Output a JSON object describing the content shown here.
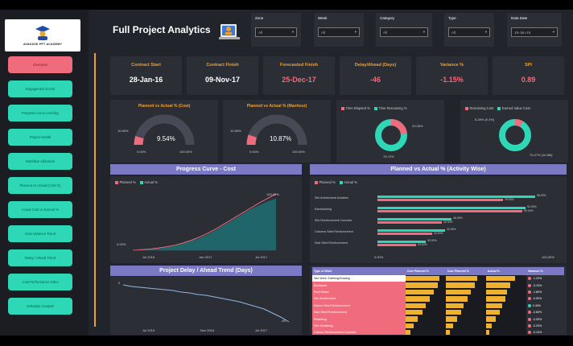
{
  "title": "Full Project Analytics",
  "logo_text": "AVAKASH PPT ACADEMY",
  "nav": [
    {
      "label": "Overview",
      "active": true
    },
    {
      "label": "Engagement (Cost)",
      "active": false
    },
    {
      "label": "Progress Curve (Activity)",
      "active": false
    },
    {
      "label": "Project Health",
      "active": false
    },
    {
      "label": "Workflow Allocation",
      "active": false
    },
    {
      "label": "Planned vs Actual (Cost %)",
      "active": false
    },
    {
      "label": "Actual Cost vs Earned %",
      "active": false
    },
    {
      "label": "Cost Variance Trend",
      "active": false
    },
    {
      "label": "Delay / Ahead Trend",
      "active": false
    },
    {
      "label": "Cost Performance Index",
      "active": false
    },
    {
      "label": "Schedule Analysis",
      "active": false
    }
  ],
  "filters": [
    {
      "label": "Zone",
      "value": "All"
    },
    {
      "label": "Week",
      "value": "All"
    },
    {
      "label": "Category",
      "value": "All"
    },
    {
      "label": "Type",
      "value": "All"
    },
    {
      "label": "Data Date",
      "value": "18-Jan-16"
    }
  ],
  "kpis": [
    {
      "label": "Contract Start",
      "value": "28-Jan-16",
      "color": "#ffffff"
    },
    {
      "label": "Contract Finish",
      "value": "09-Nov-17",
      "color": "#ffffff"
    },
    {
      "label": "Forecasted Finish",
      "value": "25-Dec-17",
      "color": "#f06b7b"
    },
    {
      "label": "Delay/Ahead (Days)",
      "value": "-46",
      "color": "#f06b7b"
    },
    {
      "label": "Variance %",
      "value": "-1.15%",
      "color": "#f06b7b"
    },
    {
      "label": "SPI",
      "value": "0.89",
      "color": "#f06b7b"
    }
  ],
  "gauges": [
    {
      "title": "Planned vs Actual % (Cost)",
      "small": "10.66%",
      "value": "9.54%",
      "min": "0.00%",
      "max": "100.00%",
      "fraction": 0.095
    },
    {
      "title": "Planned vs Actual % (Manhour)",
      "small": "12.68%",
      "value": "10.87%",
      "min": "0.00%",
      "max": "100.00%",
      "fraction": 0.11
    }
  ],
  "donuts": [
    {
      "legend": [
        "Time Elapsed %",
        "Time Remaining %"
      ],
      "label_right": "23.28%",
      "label_bottom": "76.72%",
      "fraction": 0.2328
    },
    {
      "legend": [
        "Remaining Cost",
        "Earned Value Cost"
      ],
      "label_left": "8.28% (0.4%)",
      "label_right": "75.47% (10.8M)",
      "fraction": 0.0828
    }
  ],
  "progress_curve": {
    "title": "Progress Curve - Cost",
    "legend": [
      "Planned %",
      "Actual %"
    ],
    "start_label": "0.00%",
    "end_label": "100.00%",
    "x_labels": [
      "Jul 2016",
      "Jan 2017",
      "Jul 2017"
    ],
    "planned": [
      0,
      1,
      2,
      4,
      6,
      9,
      13,
      18,
      24,
      31,
      39,
      48,
      57,
      66,
      75,
      84,
      92,
      100
    ],
    "actual": [
      0,
      1,
      2,
      3,
      5,
      8,
      12,
      17,
      22,
      29,
      37,
      46,
      55,
      64,
      73,
      80,
      87,
      92
    ]
  },
  "planned_actual_activity": {
    "title": "Planned vs Actual % (Activity Wise)",
    "legend": [
      "Planned %",
      "Actual %"
    ],
    "rows": [
      {
        "name": "Site Architectural Activities",
        "planned": 98,
        "actual": 78,
        "planned_label": "98.00%",
        "actual_label": "78.00%"
      },
      {
        "name": "Earthworking",
        "planned": 92,
        "actual": 90,
        "planned_label": "92.00%",
        "actual_label": "90.00%"
      },
      {
        "name": "Site Reinforcement Concrete",
        "planned": 46,
        "actual": 40,
        "planned_label": "46.00%",
        "actual_label": "40.00%"
      },
      {
        "name": "Columns Steel Reinforcement",
        "planned": 42,
        "actual": 34,
        "planned_label": "42.00%",
        "actual_label": "34.00%"
      },
      {
        "name": "Slab Steel Reinforcement",
        "planned": 30,
        "actual": 24,
        "planned_label": "30.00%",
        "actual_label": "24.00%"
      }
    ],
    "axis_min": "0.00%",
    "axis_max": "100.00%"
  },
  "delay_trend": {
    "title": "Project Delay / Ahead Trend (Days)",
    "x_labels": [
      "Jul 2016",
      "Nov 2016",
      "Jul 2017"
    ],
    "start_label": "0",
    "end_label": "-46",
    "values": [
      0,
      -2,
      -3,
      -4,
      -5,
      -6,
      -7,
      -9,
      -10,
      -12,
      -13,
      -15,
      -17,
      -19,
      -21,
      -24,
      -27,
      -30,
      -35,
      -40,
      -46
    ]
  },
  "activity_table": {
    "headers": [
      "Type of Work",
      "Cum Planned %",
      "Cum Planned %",
      "Actual %",
      "Variance %"
    ],
    "rows": [
      {
        "name": "Site Work: Earthing/Grading",
        "p1": 85,
        "p2": 78,
        "a": 72,
        "v": "-1.20%",
        "good": false
      },
      {
        "name": "Blockwork",
        "p1": 80,
        "p2": 72,
        "a": 60,
        "v": "-3.10%",
        "good": false
      },
      {
        "name": "Roof Works",
        "p1": 70,
        "p2": 62,
        "a": 52,
        "v": "-1.80%",
        "good": false
      },
      {
        "name": "Site Architectural",
        "p1": 60,
        "p2": 55,
        "a": 48,
        "v": "-0.90%",
        "good": false
      },
      {
        "name": "Interior Steel Reinforcement",
        "p1": 50,
        "p2": 44,
        "a": 40,
        "v": "0.40%",
        "good": true
      },
      {
        "name": "Slab Steel Reinforcement",
        "p1": 42,
        "p2": 38,
        "a": 35,
        "v": "-0.60%",
        "good": false
      },
      {
        "name": "Plastering",
        "p1": 30,
        "p2": 28,
        "a": 24,
        "v": "-0.30%",
        "good": false
      },
      {
        "name": "Site Shuttering",
        "p1": 20,
        "p2": 18,
        "a": 15,
        "v": "-0.20%",
        "good": false
      },
      {
        "name": "Column Reinforcement Concrete",
        "p1": 12,
        "p2": 10,
        "a": 8,
        "v": "-0.10%",
        "good": false
      }
    ]
  },
  "colors": {
    "accent": "#f0a030",
    "teal": "#2ed8b6",
    "pink": "#f06b7b",
    "purple": "#7b78c4",
    "gold": "#f0b030"
  }
}
